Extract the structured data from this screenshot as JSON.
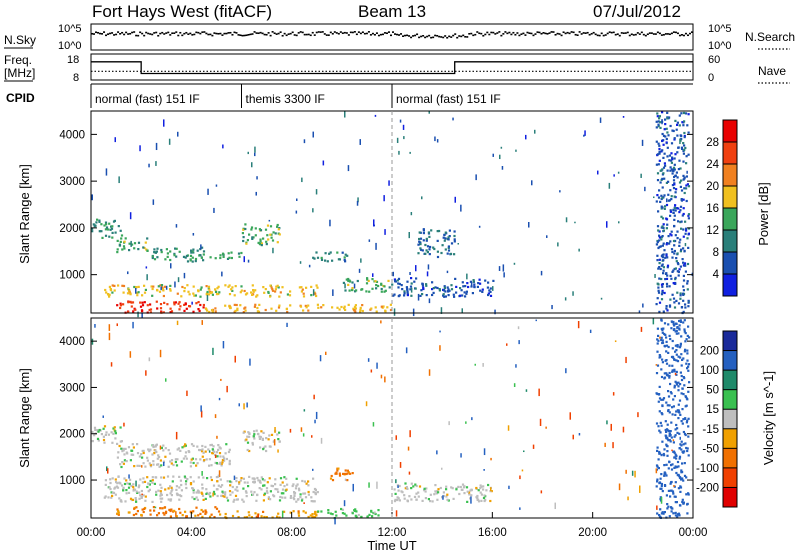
{
  "header": {
    "title": "Fort Hays West (fitACF)",
    "beam": "Beam 13",
    "date": "07/Jul/2012"
  },
  "noise_panel": {
    "left_label": "N.Sky",
    "right_label": "N.Search",
    "left_ticks": [
      "10^5",
      "10^0"
    ],
    "right_ticks": [
      "10^5",
      "10^0"
    ]
  },
  "freq_panel": {
    "left_label": "Freq.",
    "left_unit": "[MHz]",
    "left_ticks": [
      "18",
      "8"
    ],
    "right_label": "Nave",
    "right_ticks": [
      "60",
      "0"
    ]
  },
  "cpid": {
    "label": "CPID",
    "segments": [
      {
        "start_hour": 0,
        "end_hour": 6,
        "name": "normal (fast) 151 IF"
      },
      {
        "start_hour": 6,
        "end_hour": 12,
        "name": "themis 3300 IF"
      },
      {
        "start_hour": 12,
        "end_hour": 24,
        "name": "normal (fast) 151 IF"
      }
    ]
  },
  "power_colorbar": {
    "label": "Power [dB]",
    "ticks": [
      "4",
      "8",
      "12",
      "16",
      "20",
      "24",
      "28"
    ],
    "colors": [
      "#1020e0",
      "#1a4fb0",
      "#2a7f7a",
      "#3aa65a",
      "#f0c020",
      "#f08020",
      "#f04010",
      "#e80000"
    ]
  },
  "velocity_colorbar": {
    "label": "Velocity [m s^-1]",
    "ticks": [
      "200",
      "100",
      "50",
      "15",
      "-15",
      "-50",
      "-100",
      "-200"
    ],
    "colors": [
      "#1a2a9a",
      "#2460c0",
      "#1f8a6a",
      "#3ac050",
      "#bebebe",
      "#f0a000",
      "#f07000",
      "#f04000",
      "#e00000"
    ]
  },
  "chart_data": {
    "type": "heatmap",
    "xlabel": "Time UT",
    "x_ticks": [
      "00:00",
      "04:00",
      "08:00",
      "12:00",
      "16:00",
      "20:00",
      "00:00"
    ],
    "xlim_hours": [
      0,
      24
    ],
    "ylabel": "Slant Range [km]",
    "y_ticks": [
      1000,
      2000,
      3000,
      4000
    ],
    "ylim_km": [
      180,
      4500
    ],
    "frequency_mhz": [
      {
        "start_hour": 0,
        "end_hour": 2,
        "value": 15
      },
      {
        "start_hour": 2,
        "end_hour": 14.5,
        "value": 10.5
      },
      {
        "start_hour": 14.5,
        "end_hour": 24,
        "value": 15
      }
    ],
    "nave": [
      {
        "start_hour": 0,
        "end_hour": 24,
        "value": 20
      }
    ],
    "power_echo_regions": [
      {
        "t0": 0.0,
        "t1": 1.2,
        "r0": 1800,
        "r1": 2200,
        "dB": 12
      },
      {
        "t0": 1.0,
        "t1": 2.2,
        "r0": 1500,
        "r1": 1800,
        "dB": 14
      },
      {
        "t0": 2.2,
        "t1": 4.5,
        "r0": 1300,
        "r1": 1600,
        "dB": 12
      },
      {
        "t0": 4.2,
        "t1": 6.0,
        "r0": 1350,
        "r1": 1500,
        "dB": 13
      },
      {
        "t0": 6.0,
        "t1": 7.5,
        "r0": 1650,
        "r1": 2100,
        "dB": 14
      },
      {
        "t0": 8.8,
        "t1": 10.2,
        "r0": 1300,
        "r1": 1500,
        "dB": 10
      },
      {
        "t0": 10.0,
        "t1": 12.0,
        "r0": 650,
        "r1": 950,
        "dB": 14
      },
      {
        "t0": 0.5,
        "t1": 9.0,
        "r0": 550,
        "r1": 800,
        "dB": 18
      },
      {
        "t0": 1.0,
        "t1": 4.5,
        "r0": 200,
        "r1": 450,
        "dB": 27
      },
      {
        "t0": 4.5,
        "t1": 12.0,
        "r0": 220,
        "r1": 380,
        "dB": 19
      },
      {
        "t0": 12.0,
        "t1": 16.0,
        "r0": 550,
        "r1": 950,
        "dB": 6
      },
      {
        "t0": 13.0,
        "t1": 14.5,
        "r0": 1400,
        "r1": 2000,
        "dB": 8
      },
      {
        "t0": 22.5,
        "t1": 23.8,
        "r0": 200,
        "r1": 4500,
        "dB": 6
      }
    ],
    "velocity_echo_regions": [
      {
        "t0": 0.0,
        "t1": 1.2,
        "r0": 1800,
        "r1": 2200,
        "v": 0
      },
      {
        "t0": 1.0,
        "t1": 5.5,
        "r0": 1300,
        "r1": 1800,
        "v": 0
      },
      {
        "t0": 6.0,
        "t1": 7.5,
        "r0": 1650,
        "r1": 2100,
        "v": 0
      },
      {
        "t0": 9.5,
        "t1": 10.5,
        "r0": 1000,
        "r1": 1300,
        "v": -60
      },
      {
        "t0": 0.5,
        "t1": 9.0,
        "r0": 550,
        "r1": 1100,
        "v": 0
      },
      {
        "t0": 1.0,
        "t1": 5.0,
        "r0": 220,
        "r1": 450,
        "v": -60
      },
      {
        "t0": 5.0,
        "t1": 9.0,
        "r0": 200,
        "r1": 350,
        "v": -40
      },
      {
        "t0": 9.0,
        "t1": 11.5,
        "r0": 200,
        "r1": 400,
        "v": 30
      },
      {
        "t0": 12.0,
        "t1": 16.0,
        "r0": 550,
        "r1": 950,
        "v": 0
      },
      {
        "t0": 22.5,
        "t1": 23.8,
        "r0": 200,
        "r1": 4500,
        "v": 150
      }
    ]
  }
}
